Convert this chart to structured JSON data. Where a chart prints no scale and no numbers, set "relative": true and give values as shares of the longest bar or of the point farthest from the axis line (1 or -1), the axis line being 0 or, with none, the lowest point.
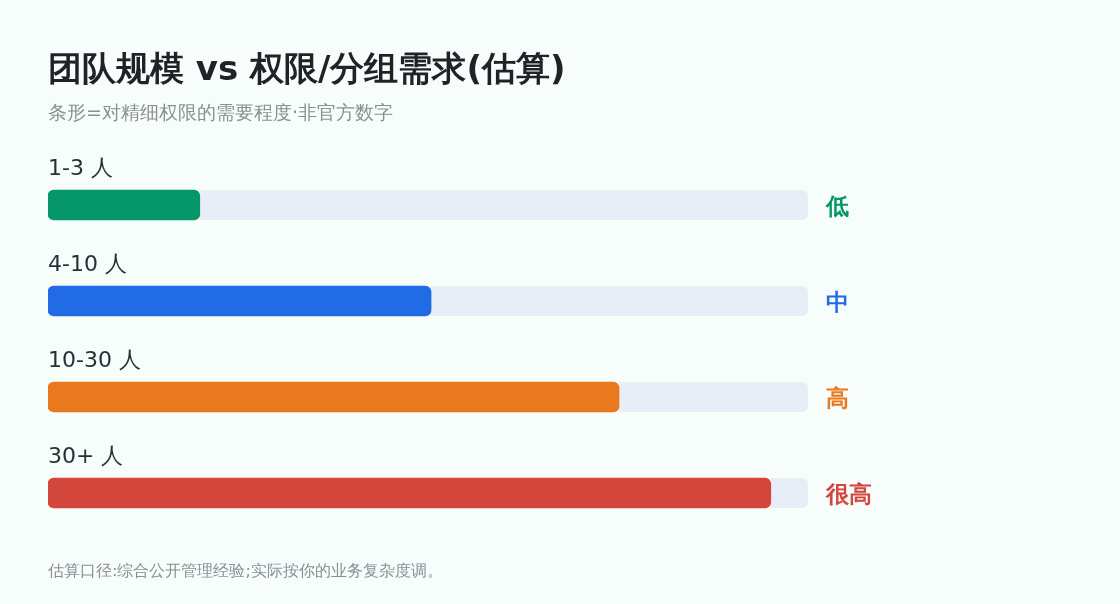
{
  "chart_data": {
    "type": "bar",
    "orientation": "horizontal",
    "relative": true,
    "title": "团队规模 vs 权限/分组需求(估算)",
    "subtitle": "条形=对精细权限的需要程度·非官方数字",
    "categories": [
      "1-3 人",
      "4-10 人",
      "10-30 人",
      "30+ 人"
    ],
    "values": [
      0.21,
      0.53,
      0.79,
      1
    ],
    "colors": [
      "#05976a",
      "#226be6",
      "#ea781f",
      "#d3463c"
    ],
    "annotations": [
      "低",
      "中",
      "高",
      "很高",
      "估算口径:综合公开管理经验;实际按你的业务复杂度调。"
    ],
    "legend": false
  }
}
